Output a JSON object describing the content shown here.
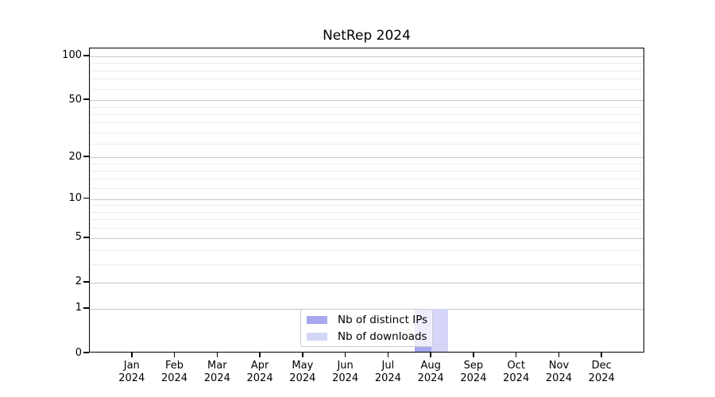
{
  "chart_data": {
    "type": "bar",
    "title": "NetRep 2024",
    "categories": [
      "Jan",
      "Feb",
      "Mar",
      "Apr",
      "May",
      "Jun",
      "Jul",
      "Aug",
      "Sep",
      "Oct",
      "Nov",
      "Dec"
    ],
    "category_year": "2024",
    "series": [
      {
        "name": "Nb of distinct IPs",
        "color": "#a7a7ee",
        "values": [
          0,
          0,
          0,
          0,
          0,
          0,
          0,
          1,
          0,
          0,
          0,
          0
        ]
      },
      {
        "name": "Nb of downloads",
        "color": "#d5d5f7",
        "values": [
          0,
          0,
          0,
          0,
          0,
          0,
          0,
          1,
          0,
          0,
          0,
          0
        ]
      }
    ],
    "xlabel": "",
    "ylabel": "",
    "yscale": "log1p",
    "ylim": [
      0,
      113
    ],
    "yticks": [
      0,
      1,
      2,
      5,
      10,
      20,
      50,
      100
    ],
    "yticks_minor": [
      3,
      4,
      6,
      7,
      8,
      9,
      12,
      14,
      16,
      18,
      25,
      30,
      35,
      40,
      45,
      60,
      70,
      80,
      90
    ],
    "grid": true,
    "legend_position": "lower center",
    "colors": {
      "spine": "#000000",
      "grid_major": "#c6c6c6",
      "grid_minor": "#ececec",
      "background": "#ffffff"
    }
  }
}
